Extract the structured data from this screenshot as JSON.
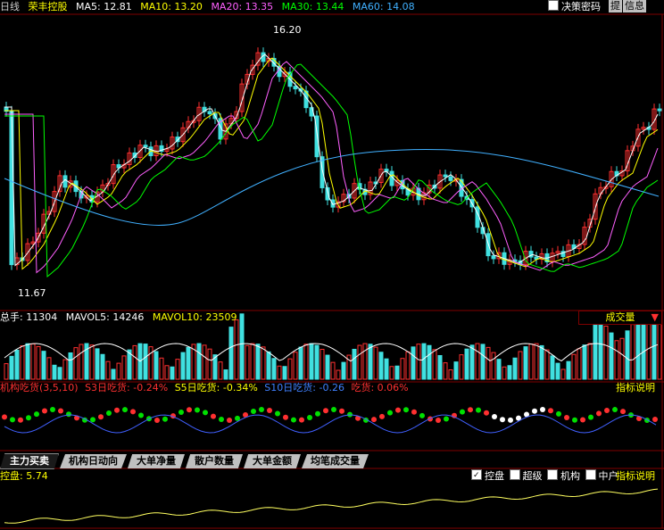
{
  "header": {
    "period": "日线",
    "stock": "荣丰控股",
    "ma5": "MA5: 12.81",
    "ma10": "MA10: 13.20",
    "ma20": "MA20: 13.35",
    "ma30": "MA30: 13.44",
    "ma60": "MA60: 14.08",
    "jueche": "决策密码",
    "tb": "提",
    "info": "信息"
  },
  "price": {
    "high_label": "16.20",
    "low_label": "11.67"
  },
  "volume": {
    "zongshou": "总手: 11304",
    "mavol5": "MAVOL5: 14246",
    "mavol10": "MAVOL10: 23509",
    "dropdown": "成交量"
  },
  "jigou": {
    "title": "机构吃货(3,5,10)",
    "s3": "S3日吃货: -0.24%",
    "s5": "S5日吃货: -0.34%",
    "s10": "S10日吃货: -0.26",
    "today": "吃货: 0.06%",
    "help": "指标说明"
  },
  "tabs": [
    "主力买卖",
    "机构日动向",
    "大单净量",
    "散户数量",
    "大单金额",
    "均笔成交量"
  ],
  "kongpan": {
    "label": "控盘: 5.74",
    "cb_kongpan": "控盘",
    "cb_chaoji": "超级",
    "cb_jigou": "机构",
    "cb_zhonghu": "中户",
    "help": "指标说明"
  },
  "colors": {
    "up": "#ff3030",
    "down": "#40e0e0",
    "ma5": "#ffffff",
    "ma10": "#ffff00",
    "ma20": "#ff60ff",
    "ma30": "#00ff00",
    "ma60": "#40b0ff"
  }
}
